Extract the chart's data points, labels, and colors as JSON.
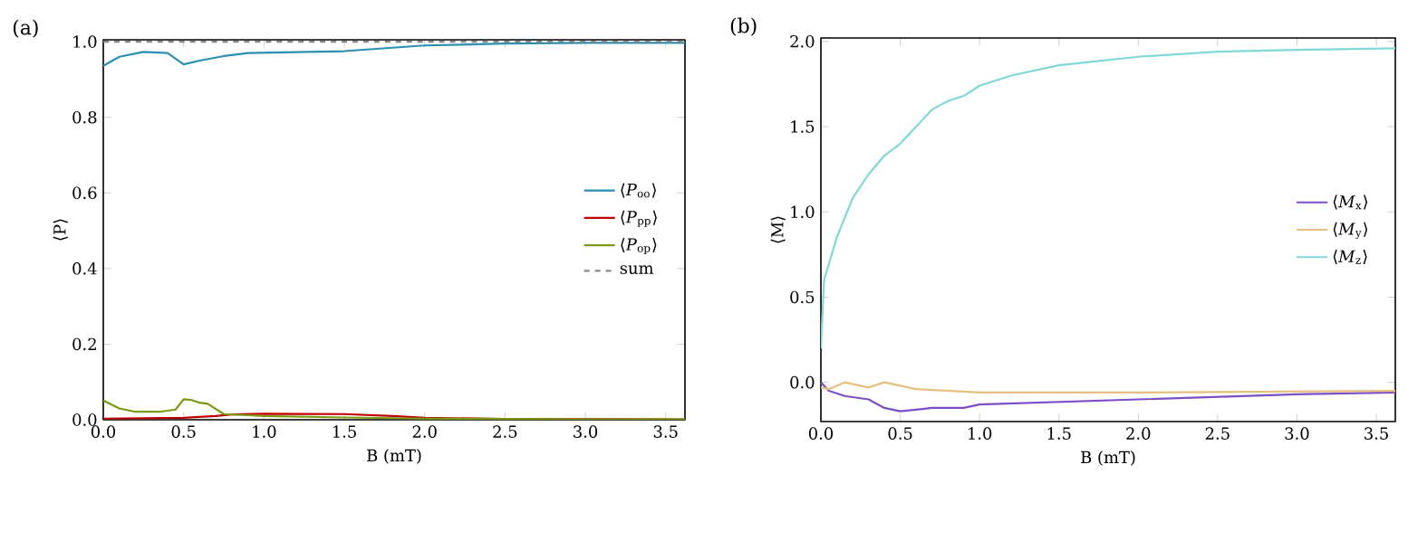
{
  "chart_data": [
    {
      "type": "line",
      "title": "(a)",
      "xlabel": "B (mT)",
      "ylabel": "⟨P⟩",
      "xlim": [
        0,
        3.62
      ],
      "ylim": [
        0,
        1.005
      ],
      "xticks": [
        {
          "value": 0,
          "label": "0.0"
        },
        {
          "value": 0.5,
          "label": "0.5"
        },
        {
          "value": 1,
          "label": "1.0"
        },
        {
          "value": 1.5,
          "label": "1.5"
        },
        {
          "value": 2,
          "label": "2.0"
        },
        {
          "value": 2.5,
          "label": "2.5"
        },
        {
          "value": 3,
          "label": "3.0"
        },
        {
          "value": 3.5,
          "label": "3.5"
        }
      ],
      "yticks": [
        {
          "value": 0,
          "label": "0.0"
        },
        {
          "value": 0.2,
          "label": "0.2"
        },
        {
          "value": 0.4,
          "label": "0.4"
        },
        {
          "value": 0.6,
          "label": "0.6"
        },
        {
          "value": 0.8,
          "label": "0.8"
        },
        {
          "value": 1,
          "label": "1.0"
        }
      ],
      "grid": false,
      "legend": "right",
      "series": [
        {
          "name": "⟨*P*$_{oo}$⟩",
          "color": "#2a8fb0",
          "x": [
            0,
            0.1,
            0.25,
            0.4,
            0.5,
            0.6,
            0.75,
            0.9,
            1.5,
            2.0,
            2.5,
            3.0,
            3.62
          ],
          "values": [
            0.936,
            0.96,
            0.973,
            0.97,
            0.94,
            0.95,
            0.962,
            0.97,
            0.975,
            0.99,
            0.995,
            0.997,
            0.997
          ]
        },
        {
          "name": "⟨*P*$_{pp}$⟩",
          "color": "#c00000",
          "x": [
            0,
            0.5,
            0.7,
            0.8,
            1.0,
            1.5,
            1.8,
            2.0,
            2.5,
            3.62
          ],
          "values": [
            0.003,
            0.005,
            0.01,
            0.014,
            0.016,
            0.015,
            0.01,
            0.005,
            0.002,
            0.001
          ]
        },
        {
          "name": "⟨*P*$_{op}$⟩",
          "color": "#7a9a10",
          "x": [
            0,
            0.1,
            0.2,
            0.35,
            0.45,
            0.5,
            0.55,
            0.6,
            0.65,
            0.75,
            0.9,
            1.0,
            1.5,
            2.0,
            2.5,
            3.0,
            3.62
          ],
          "values": [
            0.051,
            0.03,
            0.021,
            0.021,
            0.027,
            0.054,
            0.052,
            0.045,
            0.042,
            0.015,
            0.012,
            0.01,
            0.006,
            0.003,
            0.002,
            0.001,
            0.001
          ]
        },
        {
          "name": "sum",
          "color": "#888888",
          "line_style": "dashed",
          "x": [
            0,
            3.62
          ],
          "values": [
            1,
            1
          ]
        }
      ]
    },
    {
      "type": "line",
      "title": "(b)",
      "xlabel": "B (mT)",
      "ylabel": "⟨M⟩",
      "xlim": [
        0,
        3.62
      ],
      "ylim": [
        -0.23,
        2.02
      ],
      "xticks": [
        {
          "value": 0,
          "label": "0.0"
        },
        {
          "value": 0.5,
          "label": "0.5"
        },
        {
          "value": 1,
          "label": "1.0"
        },
        {
          "value": 1.5,
          "label": "1.5"
        },
        {
          "value": 2,
          "label": "2.0"
        },
        {
          "value": 2.5,
          "label": "2.5"
        },
        {
          "value": 3,
          "label": "3.0"
        },
        {
          "value": 3.5,
          "label": "3.5"
        }
      ],
      "yticks": [
        {
          "value": 0,
          "label": "0.0"
        },
        {
          "value": 0.5,
          "label": "0.5"
        },
        {
          "value": 1,
          "label": "1.0"
        },
        {
          "value": 1.5,
          "label": "1.5"
        },
        {
          "value": 2,
          "label": "2.0"
        }
      ],
      "grid": false,
      "legend": "right",
      "series": [
        {
          "name": "⟨*M*$_{x}$⟩",
          "color": "#7b4fc8",
          "x": [
            0,
            0.05,
            0.15,
            0.3,
            0.4,
            0.5,
            0.6,
            0.7,
            0.9,
            1.0,
            2.0,
            3.0,
            3.62
          ],
          "values": [
            0,
            -0.05,
            -0.08,
            -0.1,
            -0.15,
            -0.17,
            -0.16,
            -0.15,
            -0.15,
            -0.13,
            -0.1,
            -0.07,
            -0.06
          ]
        },
        {
          "name": "⟨*M*$_{y}$⟩",
          "color": "#e6c080",
          "x": [
            0,
            0.05,
            0.15,
            0.3,
            0.4,
            0.5,
            0.6,
            0.8,
            1.0,
            2.0,
            3.62
          ],
          "values": [
            -0.03,
            -0.04,
            0,
            -0.03,
            0,
            -0.02,
            -0.04,
            -0.05,
            -0.06,
            -0.06,
            -0.05
          ]
        },
        {
          "name": "⟨*M*$_{z}$⟩",
          "color": "#80d8d8",
          "x": [
            0,
            0.02,
            0.1,
            0.2,
            0.3,
            0.4,
            0.5,
            0.6,
            0.7,
            0.8,
            0.9,
            1.0,
            1.2,
            1.5,
            2.0,
            2.5,
            3.0,
            3.62
          ],
          "values": [
            0.2,
            0.6,
            0.85,
            1.08,
            1.22,
            1.33,
            1.4,
            1.5,
            1.6,
            1.65,
            1.68,
            1.74,
            1.8,
            1.86,
            1.91,
            1.94,
            1.95,
            1.96
          ]
        }
      ]
    }
  ]
}
